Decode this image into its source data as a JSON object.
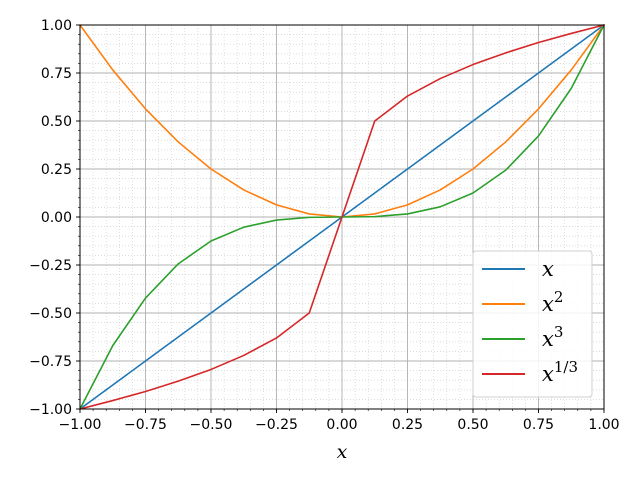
{
  "chart_data": {
    "type": "line",
    "title": "",
    "xlabel": "x",
    "ylabel": "",
    "xlim": [
      -1.0,
      1.0
    ],
    "ylim": [
      -1.0,
      1.0
    ],
    "grid": {
      "major": true,
      "minor": true
    },
    "legend_position": "lower-right",
    "x_ticks": [
      "−1.00",
      "−0.75",
      "−0.50",
      "−0.25",
      "0.00",
      "0.25",
      "0.50",
      "0.75",
      "1.00"
    ],
    "y_ticks": [
      "−1.00",
      "−0.75",
      "−0.50",
      "−0.25",
      "0.00",
      "0.25",
      "0.50",
      "0.75",
      "1.00"
    ],
    "x_tick_values": [
      -1.0,
      -0.75,
      -0.5,
      -0.25,
      0.0,
      0.25,
      0.5,
      0.75,
      1.0
    ],
    "y_tick_values": [
      -1.0,
      -0.75,
      -0.5,
      -0.25,
      0.0,
      0.25,
      0.5,
      0.75,
      1.0
    ],
    "x": [
      -1.0,
      -0.875,
      -0.75,
      -0.625,
      -0.5,
      -0.375,
      -0.25,
      -0.125,
      0.0,
      0.125,
      0.25,
      0.375,
      0.5,
      0.625,
      0.75,
      0.875,
      1.0
    ],
    "series": [
      {
        "name": "x",
        "base": "x",
        "sup": "",
        "color": "#1f77b4",
        "values": [
          -1.0,
          -0.875,
          -0.75,
          -0.625,
          -0.5,
          -0.375,
          -0.25,
          -0.125,
          0.0,
          0.125,
          0.25,
          0.375,
          0.5,
          0.625,
          0.75,
          0.875,
          1.0
        ]
      },
      {
        "name": "x^2",
        "base": "x",
        "sup": "2",
        "color": "#ff7f0e",
        "values": [
          1.0,
          0.766,
          0.563,
          0.391,
          0.25,
          0.141,
          0.063,
          0.016,
          0.0,
          0.016,
          0.063,
          0.141,
          0.25,
          0.391,
          0.563,
          0.766,
          1.0
        ]
      },
      {
        "name": "x^3",
        "base": "x",
        "sup": "3",
        "color": "#2ca02c",
        "values": [
          -1.0,
          -0.67,
          -0.422,
          -0.244,
          -0.125,
          -0.053,
          -0.016,
          -0.002,
          0.0,
          0.002,
          0.016,
          0.053,
          0.125,
          0.244,
          0.422,
          0.67,
          1.0
        ]
      },
      {
        "name": "x^1/3",
        "base": "x",
        "sup": "1/3",
        "color": "#d62728",
        "values": [
          -1.0,
          -0.956,
          -0.909,
          -0.855,
          -0.794,
          -0.721,
          -0.63,
          -0.5,
          0.0,
          0.5,
          0.63,
          0.721,
          0.794,
          0.855,
          0.909,
          0.956,
          1.0
        ]
      }
    ]
  }
}
